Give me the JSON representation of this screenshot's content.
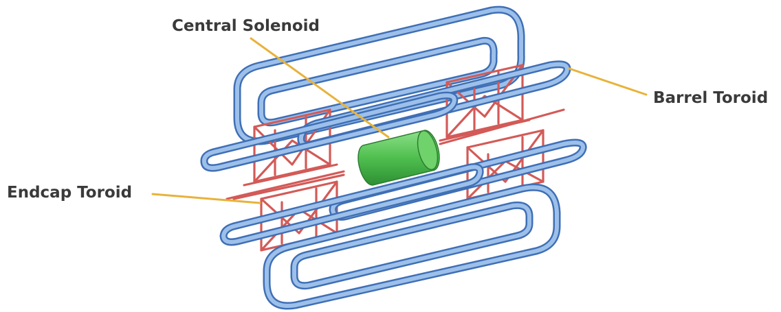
{
  "labels": {
    "central_solenoid": "Central Solenoid",
    "barrel_toroid": "Barrel Toroid",
    "endcap_toroid": "Endcap Toroid"
  },
  "colors": {
    "barrel_coil": "#4a7cc4",
    "barrel_coil_highlight": "#9cc0ea",
    "endcap_coil": "#d35a57",
    "solenoid": "#4fbf4f",
    "leader_line": "#e8b23a",
    "label_text": "#3a3a3a"
  }
}
